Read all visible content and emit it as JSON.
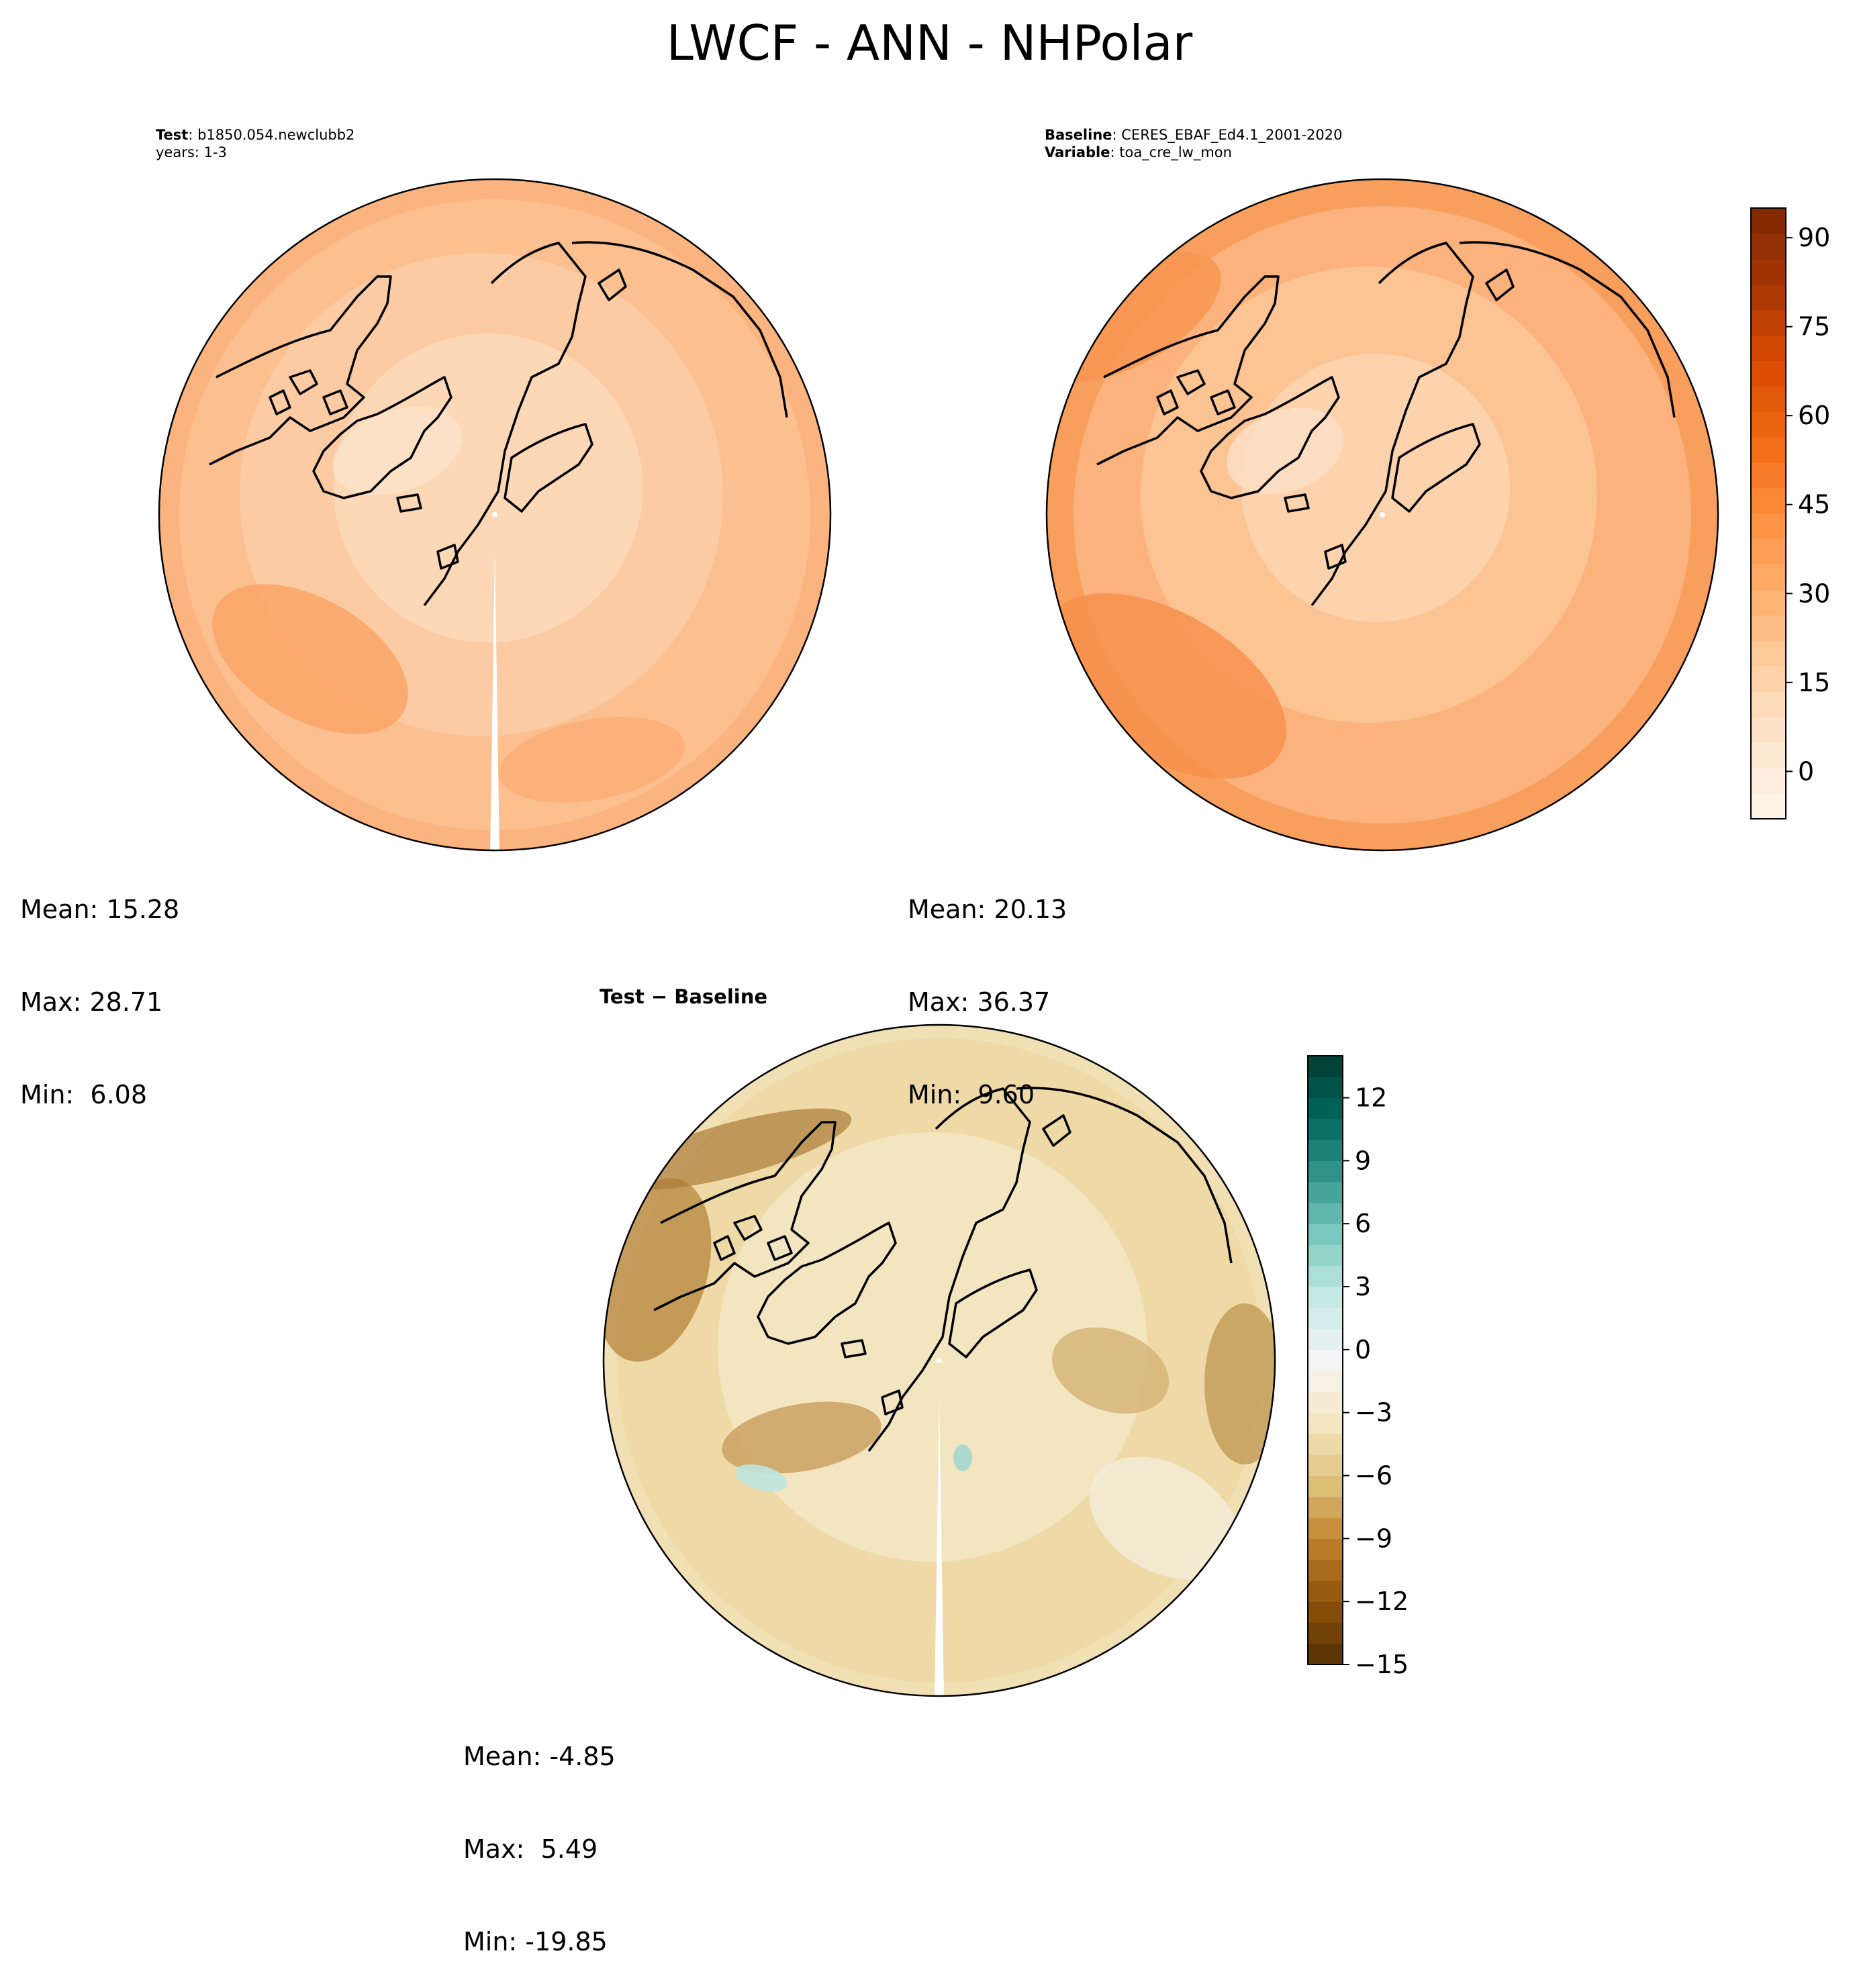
{
  "figure": {
    "title": "LWCF - ANN - NHPolar"
  },
  "panels": {
    "test": {
      "label_key": "Test",
      "label_value": ": b1850.054.newclubb2",
      "line2": "years: 1-3",
      "stats": {
        "mean": "Mean: 15.28",
        "max": "Max: 28.71",
        "min": "Min:  6.08"
      }
    },
    "baseline": {
      "label_key": "Baseline",
      "label_value": ": CERES_EBAF_Ed4.1_2001-2020",
      "line2_key": "Variable",
      "line2_value": ": toa_cre_lw_mon",
      "stats": {
        "mean": "Mean: 20.13",
        "max": "Max: 36.37",
        "min": "Min:  9.60"
      }
    },
    "diff": {
      "title": "Test − Baseline",
      "stats": {
        "mean": "Mean: -4.85",
        "max": "Max:  5.49",
        "min": "Min: -19.85"
      }
    }
  },
  "chart_data": [
    {
      "type": "heatmap",
      "projection": "north polar stereographic",
      "panel": "test",
      "colormap": "Oranges",
      "mean": 15.28,
      "max": 28.71,
      "min": 6.08
    },
    {
      "type": "heatmap",
      "projection": "north polar stereographic",
      "panel": "baseline",
      "colormap": "Oranges",
      "mean": 20.13,
      "max": 36.37,
      "min": 9.6,
      "colorbar": {
        "range": [
          -8,
          95
        ],
        "ticks": [
          0,
          15,
          30,
          45,
          60,
          75,
          90
        ],
        "tick_labels": [
          "0",
          "15",
          "30",
          "45",
          "60",
          "75",
          "90"
        ]
      }
    },
    {
      "type": "heatmap",
      "projection": "north polar stereographic",
      "panel": "diff",
      "colormap": "BrBG",
      "mean": -4.85,
      "max": 5.49,
      "min": -19.85,
      "colorbar": {
        "range": [
          -15,
          14
        ],
        "ticks": [
          -15,
          -12,
          -9,
          -6,
          -3,
          0,
          3,
          6,
          9,
          12
        ],
        "tick_labels": [
          "−15",
          "−12",
          "−9",
          "−6",
          "−3",
          "0",
          "3",
          "6",
          "9",
          "12"
        ]
      }
    }
  ]
}
